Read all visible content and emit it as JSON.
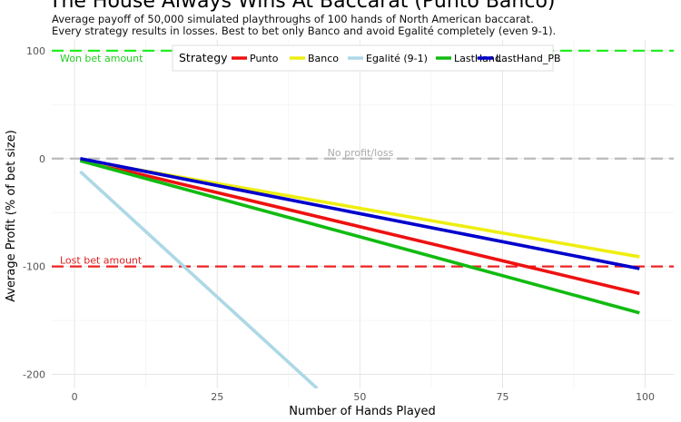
{
  "chart_data": {
    "type": "line",
    "title": "The House Always Wins At Baccarat (Punto Banco)",
    "subtitle": [
      "Average payoff of 50,000 simulated playthroughs of 100 hands of North American baccarat.",
      "Every strategy results in losses. Best to bet only Banco and avoid Egalité completely (even 9-1)."
    ],
    "xlabel": "Number of Hands Played",
    "ylabel": "Average Profit (% of bet size)",
    "xlim": [
      -4,
      105
    ],
    "ylim": [
      -213,
      110
    ],
    "xticks": [
      0,
      25,
      50,
      75,
      100
    ],
    "yticks": [
      100,
      0,
      -100,
      -200
    ],
    "grid": true,
    "legend": {
      "title": "Strategy",
      "placement": "top-center",
      "entries": [
        "Punto",
        "Banco",
        "Egalité (9-1)",
        "LastHand",
        "LastHand_PB"
      ]
    },
    "series": [
      {
        "name": "Punto",
        "color": "#ee1111",
        "x": [
          1,
          99
        ],
        "y": [
          -1.2,
          -125
        ]
      },
      {
        "name": "Banco",
        "color": "#eeee11",
        "x": [
          1,
          99
        ],
        "y": [
          -1,
          -91
        ]
      },
      {
        "name": "Egalité (9-1)",
        "color": "#add8e6",
        "x": [
          1,
          42.5
        ],
        "y": [
          -12,
          -213
        ]
      },
      {
        "name": "LastHand",
        "color": "#11bb11",
        "x": [
          1,
          99
        ],
        "y": [
          -2,
          -143
        ]
      },
      {
        "name": "LastHand_PB",
        "color": "#0000cc",
        "x": [
          1,
          99
        ],
        "y": [
          0,
          -102
        ]
      }
    ],
    "reference_lines": [
      {
        "y": 100,
        "label": "Won bet amount",
        "color": "#22ee22",
        "label_color": "#22cc22"
      },
      {
        "y": 0,
        "label": "No profit/loss",
        "color": "#bbbbbb",
        "label_color": "#aaaaaa"
      },
      {
        "y": -100,
        "label": "Lost bet amount",
        "color": "#ee2222",
        "label_color": "#dd2222"
      }
    ]
  }
}
